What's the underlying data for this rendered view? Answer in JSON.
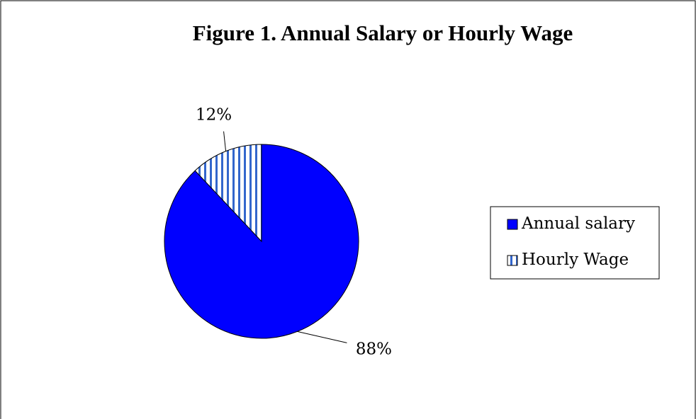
{
  "chart_data": {
    "type": "pie",
    "title": "Figure 1.  Annual Salary or Hourly Wage",
    "categories": [
      "Annual salary",
      "Hourly Wage"
    ],
    "values": [
      88,
      12
    ],
    "value_labels": [
      "88%",
      "12%"
    ],
    "colors": [
      "#0000ff",
      "#3366cc"
    ],
    "legend": "right"
  }
}
